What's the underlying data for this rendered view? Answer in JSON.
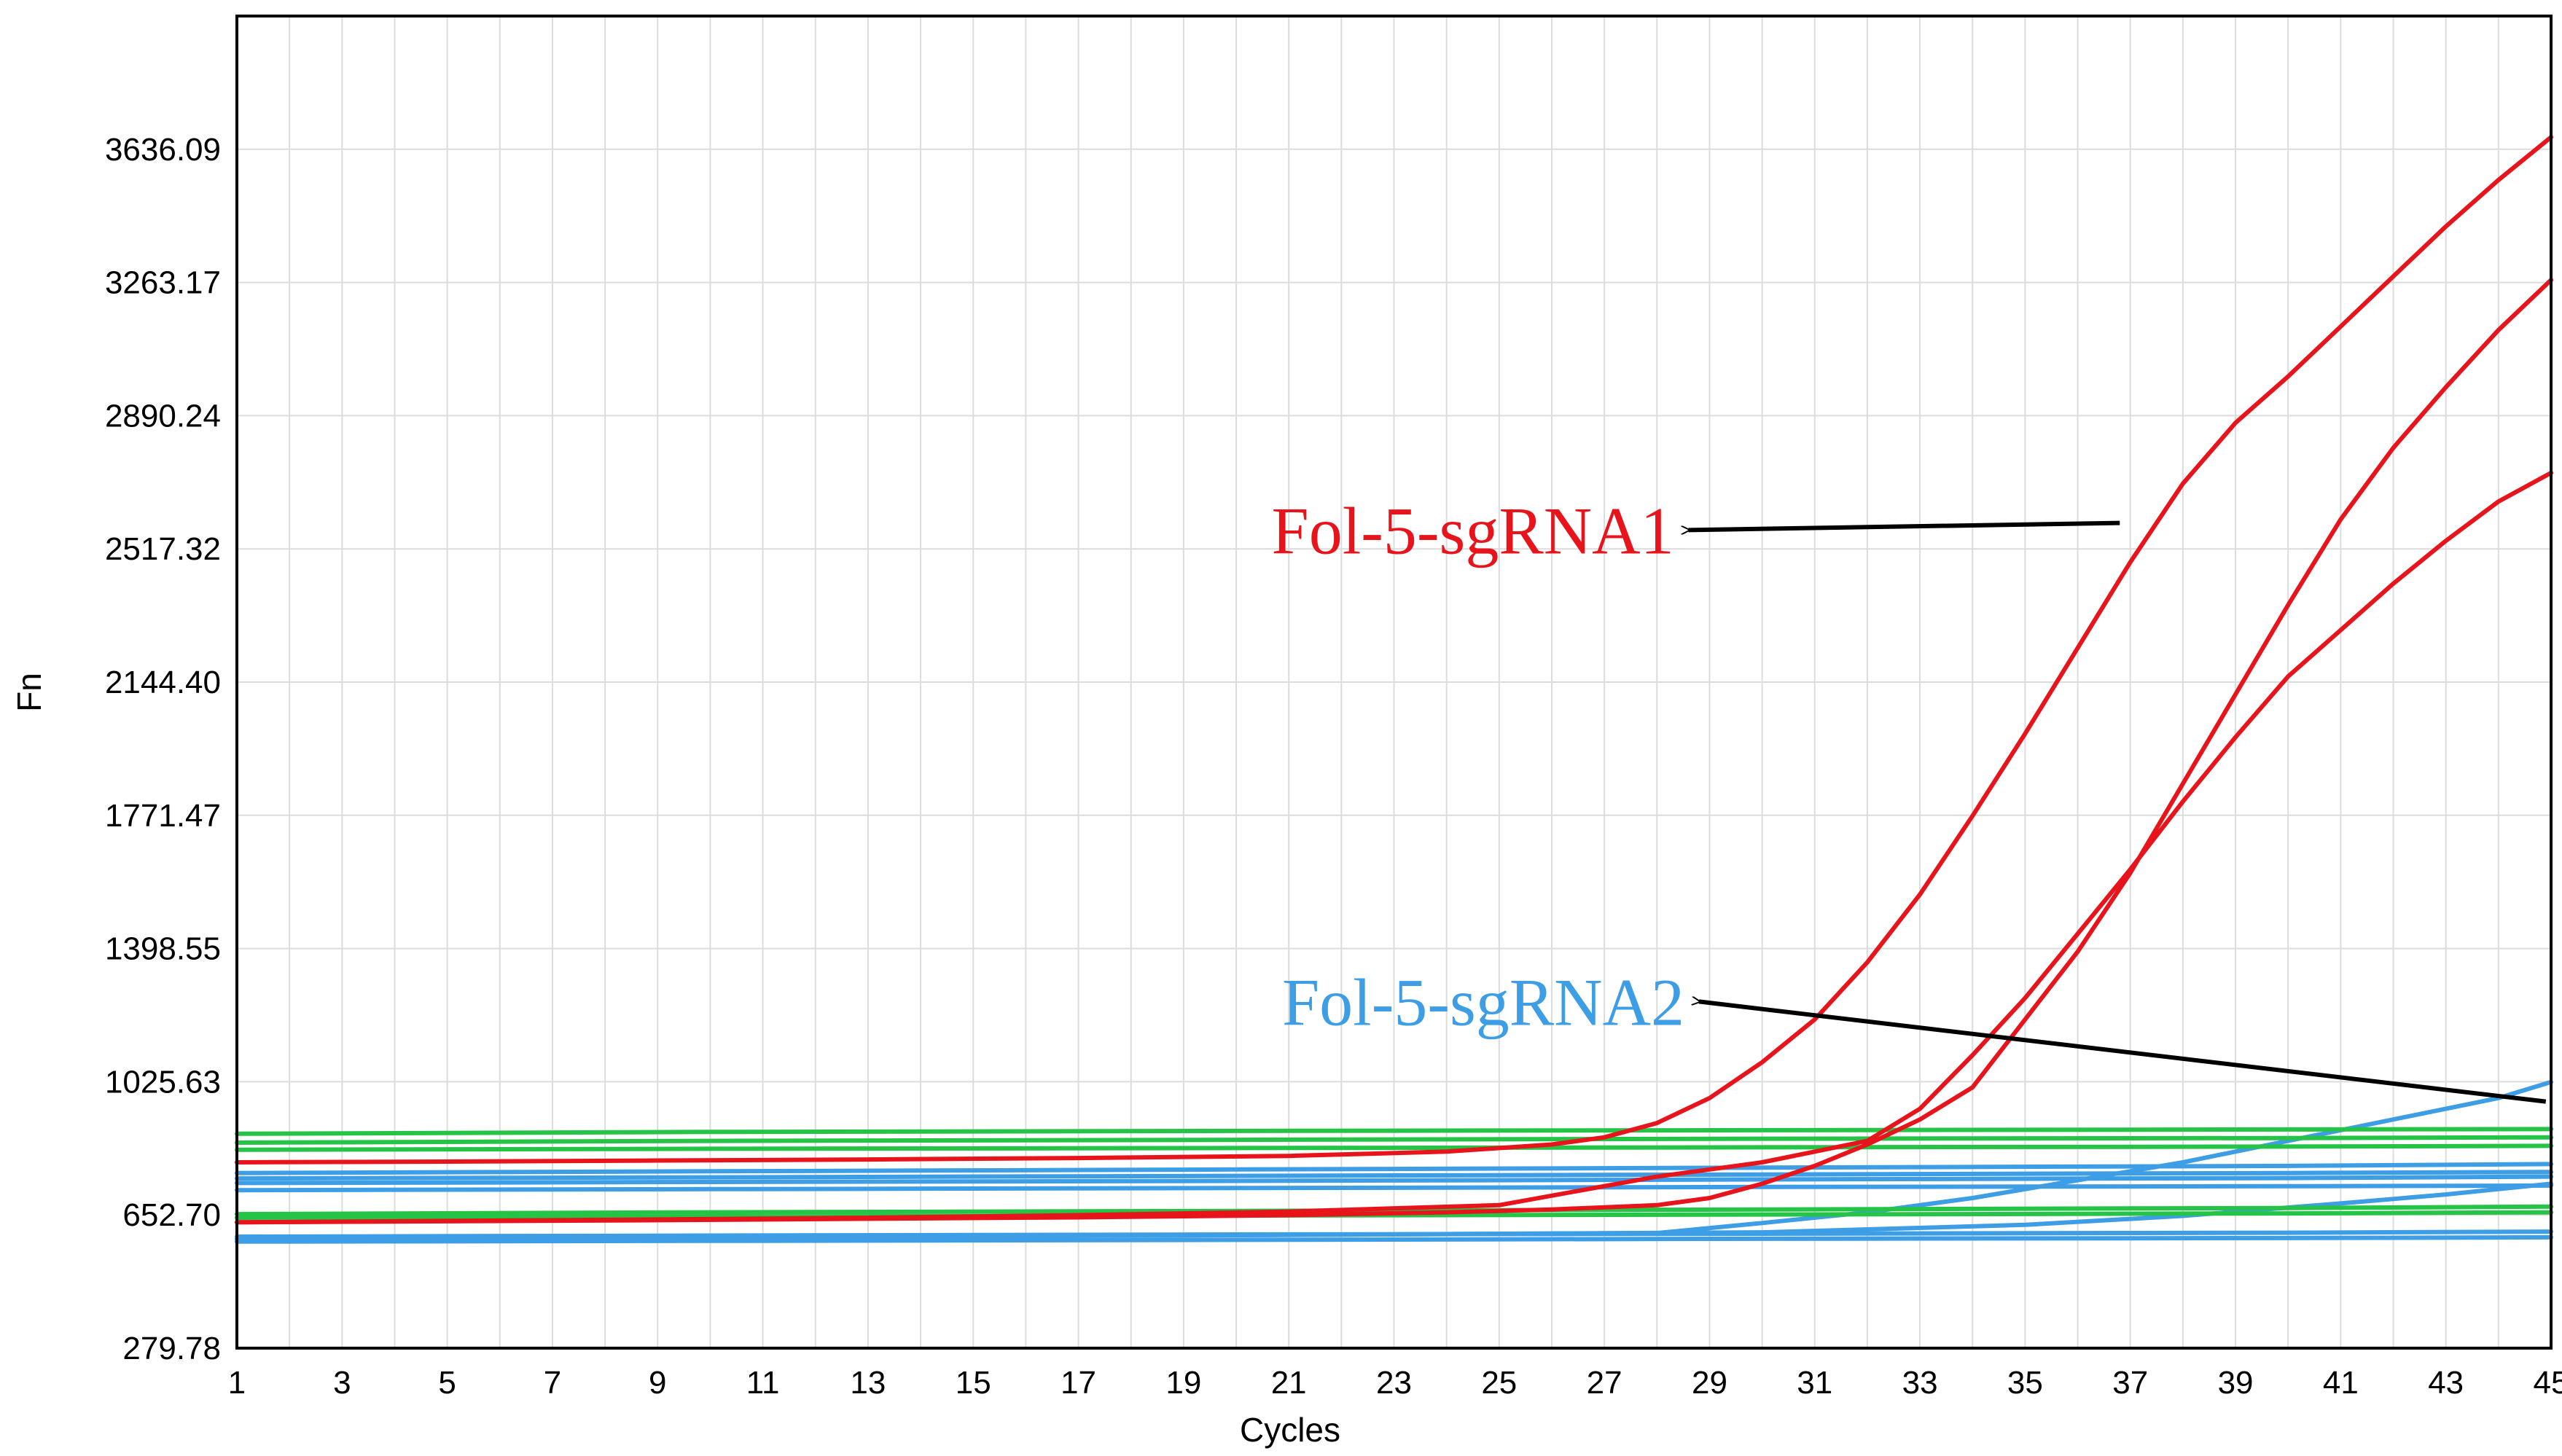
{
  "chart_data": {
    "type": "line",
    "title": "",
    "xlabel": "Cycles",
    "ylabel": "Fn",
    "xlim": [
      1,
      45
    ],
    "ylim": [
      279.78,
      4009.0
    ],
    "x_ticks": [
      "1",
      "3",
      "5",
      "7",
      "9",
      "11",
      "13",
      "15",
      "17",
      "19",
      "21",
      "23",
      "25",
      "27",
      "29",
      "31",
      "33",
      "35",
      "37",
      "39",
      "41",
      "43",
      "45"
    ],
    "y_ticks": [
      279.78,
      652.7,
      1025.63,
      1398.55,
      1771.47,
      2144.4,
      2517.32,
      2890.24,
      3263.17,
      3636.09
    ],
    "y_tick_labels": [
      "279.78",
      "652.70",
      "1025.63",
      "1398.55",
      "1771.47",
      "2144.40",
      "2517.32",
      "2890.24",
      "3263.17",
      "3636.09"
    ],
    "grid": true,
    "colors": {
      "red": "#e8141c",
      "blue": "#3d9ee6",
      "green": "#25c447",
      "grid": "#dcdcdc",
      "arrow": "#000000"
    },
    "series": [
      {
        "color": "red",
        "points": [
          [
            1,
            800
          ],
          [
            5,
            802
          ],
          [
            9,
            805
          ],
          [
            13,
            808
          ],
          [
            17,
            812
          ],
          [
            21,
            818
          ],
          [
            24,
            830
          ],
          [
            26,
            850
          ],
          [
            27,
            870
          ],
          [
            28,
            910
          ],
          [
            29,
            980
          ],
          [
            30,
            1080
          ],
          [
            31,
            1200
          ],
          [
            32,
            1360
          ],
          [
            33,
            1550
          ],
          [
            34,
            1770
          ],
          [
            35,
            2000
          ],
          [
            36,
            2240
          ],
          [
            37,
            2480
          ],
          [
            38,
            2700
          ],
          [
            39,
            2870
          ],
          [
            40,
            3000
          ],
          [
            41,
            3140
          ],
          [
            42,
            3280
          ],
          [
            43,
            3420
          ],
          [
            44,
            3550
          ],
          [
            45,
            3670
          ]
        ]
      },
      {
        "color": "red",
        "points": [
          [
            1,
            632
          ],
          [
            5,
            635
          ],
          [
            9,
            638
          ],
          [
            13,
            642
          ],
          [
            17,
            646
          ],
          [
            21,
            652
          ],
          [
            24,
            660
          ],
          [
            26,
            668
          ],
          [
            28,
            680
          ],
          [
            29,
            700
          ],
          [
            30,
            740
          ],
          [
            31,
            790
          ],
          [
            32,
            850
          ],
          [
            33,
            920
          ],
          [
            34,
            1010
          ],
          [
            35,
            1200
          ],
          [
            36,
            1390
          ],
          [
            37,
            1610
          ],
          [
            38,
            1860
          ],
          [
            39,
            2110
          ],
          [
            40,
            2360
          ],
          [
            41,
            2600
          ],
          [
            42,
            2800
          ],
          [
            43,
            2970
          ],
          [
            44,
            3130
          ],
          [
            45,
            3270
          ]
        ]
      },
      {
        "color": "red",
        "points": [
          [
            1,
            632
          ],
          [
            5,
            636
          ],
          [
            9,
            640
          ],
          [
            13,
            645
          ],
          [
            17,
            652
          ],
          [
            21,
            662
          ],
          [
            25,
            680
          ],
          [
            28,
            760
          ],
          [
            30,
            800
          ],
          [
            31,
            830
          ],
          [
            32,
            860
          ],
          [
            33,
            950
          ],
          [
            34,
            1100
          ],
          [
            35,
            1260
          ],
          [
            36,
            1440
          ],
          [
            37,
            1620
          ],
          [
            38,
            1810
          ],
          [
            39,
            1990
          ],
          [
            40,
            2160
          ],
          [
            41,
            2290
          ],
          [
            42,
            2420
          ],
          [
            43,
            2540
          ],
          [
            44,
            2650
          ],
          [
            45,
            2730
          ]
        ]
      },
      {
        "color": "green",
        "points": [
          [
            1,
            880
          ],
          [
            10,
            885
          ],
          [
            20,
            888
          ],
          [
            30,
            890
          ],
          [
            40,
            892
          ],
          [
            45,
            893
          ]
        ]
      },
      {
        "color": "green",
        "points": [
          [
            1,
            855
          ],
          [
            10,
            860
          ],
          [
            20,
            863
          ],
          [
            30,
            866
          ],
          [
            40,
            868
          ],
          [
            45,
            870
          ]
        ]
      },
      {
        "color": "green",
        "points": [
          [
            1,
            835
          ],
          [
            10,
            838
          ],
          [
            20,
            840
          ],
          [
            30,
            842
          ],
          [
            40,
            844
          ],
          [
            45,
            846
          ]
        ]
      },
      {
        "color": "green",
        "points": [
          [
            1,
            655
          ],
          [
            10,
            660
          ],
          [
            20,
            664
          ],
          [
            30,
            668
          ],
          [
            40,
            672
          ],
          [
            45,
            676
          ]
        ]
      },
      {
        "color": "green",
        "points": [
          [
            1,
            645
          ],
          [
            10,
            648
          ],
          [
            20,
            651
          ],
          [
            30,
            654
          ],
          [
            40,
            657
          ],
          [
            45,
            660
          ]
        ]
      },
      {
        "color": "blue",
        "points": [
          [
            1,
            770
          ],
          [
            10,
            775
          ],
          [
            20,
            780
          ],
          [
            30,
            785
          ],
          [
            40,
            790
          ],
          [
            45,
            795
          ]
        ]
      },
      {
        "color": "blue",
        "points": [
          [
            1,
            755
          ],
          [
            10,
            758
          ],
          [
            20,
            762
          ],
          [
            30,
            766
          ],
          [
            40,
            770
          ],
          [
            45,
            773
          ]
        ]
      },
      {
        "color": "blue",
        "points": [
          [
            1,
            742
          ],
          [
            10,
            745
          ],
          [
            20,
            748
          ],
          [
            30,
            752
          ],
          [
            40,
            756
          ],
          [
            45,
            760
          ]
        ]
      },
      {
        "color": "blue",
        "points": [
          [
            1,
            722
          ],
          [
            10,
            725
          ],
          [
            20,
            728
          ],
          [
            30,
            731
          ],
          [
            40,
            733
          ],
          [
            45,
            735
          ]
        ]
      },
      {
        "color": "blue",
        "points": [
          [
            1,
            592
          ],
          [
            10,
            595
          ],
          [
            20,
            598
          ],
          [
            30,
            600
          ],
          [
            40,
            603
          ],
          [
            45,
            606
          ]
        ]
      },
      {
        "color": "blue",
        "points": [
          [
            1,
            578
          ],
          [
            10,
            580
          ],
          [
            20,
            583
          ],
          [
            30,
            586
          ],
          [
            40,
            588
          ],
          [
            45,
            590
          ]
        ]
      },
      {
        "color": "blue",
        "points": [
          [
            1,
            585
          ],
          [
            10,
            590
          ],
          [
            20,
            596
          ],
          [
            28,
            602
          ],
          [
            30,
            630
          ],
          [
            32,
            660
          ],
          [
            34,
            700
          ],
          [
            36,
            750
          ],
          [
            38,
            800
          ],
          [
            40,
            860
          ],
          [
            42,
            920
          ],
          [
            44,
            980
          ],
          [
            45,
            1025
          ]
        ]
      },
      {
        "color": "blue",
        "points": [
          [
            1,
            585
          ],
          [
            10,
            590
          ],
          [
            20,
            596
          ],
          [
            30,
            604
          ],
          [
            35,
            625
          ],
          [
            38,
            650
          ],
          [
            41,
            685
          ],
          [
            43,
            710
          ],
          [
            45,
            740
          ]
        ]
      }
    ],
    "annotations": [
      {
        "text": "Fol-5-sgRNA1",
        "color": "red",
        "arrow_from": [
          36.8,
          2590
        ],
        "arrow_to": [
          28.6,
          2570
        ]
      },
      {
        "text": "Fol-5-sgRNA2",
        "color": "blue",
        "arrow_from": [
          44.9,
          970
        ],
        "arrow_to": [
          28.8,
          1250
        ]
      }
    ]
  }
}
